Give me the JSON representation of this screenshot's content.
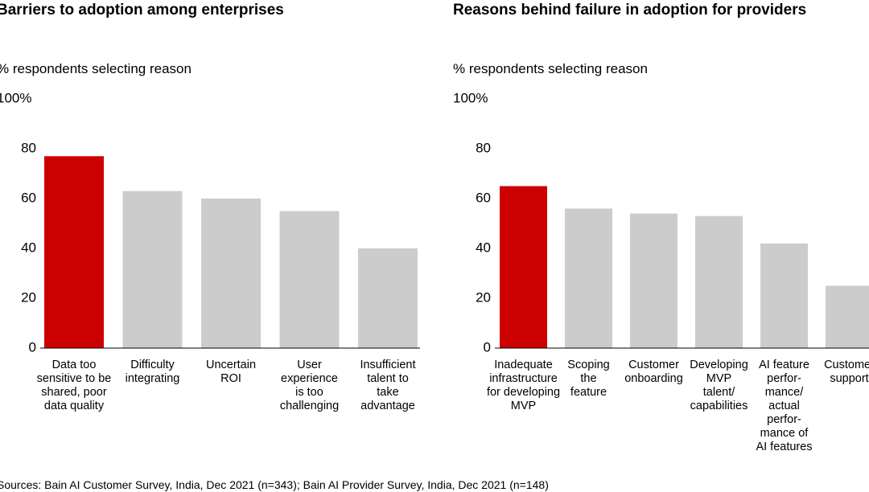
{
  "chart_data": [
    {
      "type": "bar",
      "title": "Barriers to adoption among enterprises",
      "subtitle": "% respondents selecting reason",
      "categories": [
        "Data too\nsensitive to be\nshared, poor\ndata quality",
        "Difficulty\nintegrating",
        "Uncertain\nROI",
        "User\nexperience\nis too\nchallenging",
        "Insufficient\ntalent to\ntake\nadvantage"
      ],
      "values": [
        77,
        63,
        60,
        55,
        40
      ],
      "colors": [
        "#cc0000",
        "#cccccc",
        "#cccccc",
        "#cccccc",
        "#cccccc"
      ],
      "ylim": [
        0,
        100
      ],
      "yticks": [
        0,
        20,
        40,
        60,
        80,
        {
          "value": 100,
          "label": "100%"
        }
      ],
      "grid": false
    },
    {
      "type": "bar",
      "title": "Reasons behind failure in adoption for providers",
      "subtitle": "% respondents selecting reason",
      "categories": [
        "Inadequate\ninfrastructure\nfor developing\nMVP",
        "Scoping\nthe\nfeature",
        "Customer\nonboarding",
        "Developing\nMVP\ntalent/\ncapabilities",
        "AI feature\nperfor-\nmance/\nactual\nperfor-\nmance of\nAI features",
        "Customer\nsupport"
      ],
      "values": [
        65,
        56,
        54,
        53,
        42,
        25
      ],
      "colors": [
        "#cc0000",
        "#cccccc",
        "#cccccc",
        "#cccccc",
        "#cccccc",
        "#cccccc"
      ],
      "ylim": [
        0,
        100
      ],
      "yticks": [
        0,
        20,
        40,
        60,
        80,
        {
          "value": 100,
          "label": "100%"
        }
      ],
      "grid": false
    }
  ],
  "footer": {
    "source": "Sources: Bain AI Customer Survey, India, Dec 2021 (n=343); Bain AI Provider Survey, India, Dec 2021 (n=148)"
  }
}
